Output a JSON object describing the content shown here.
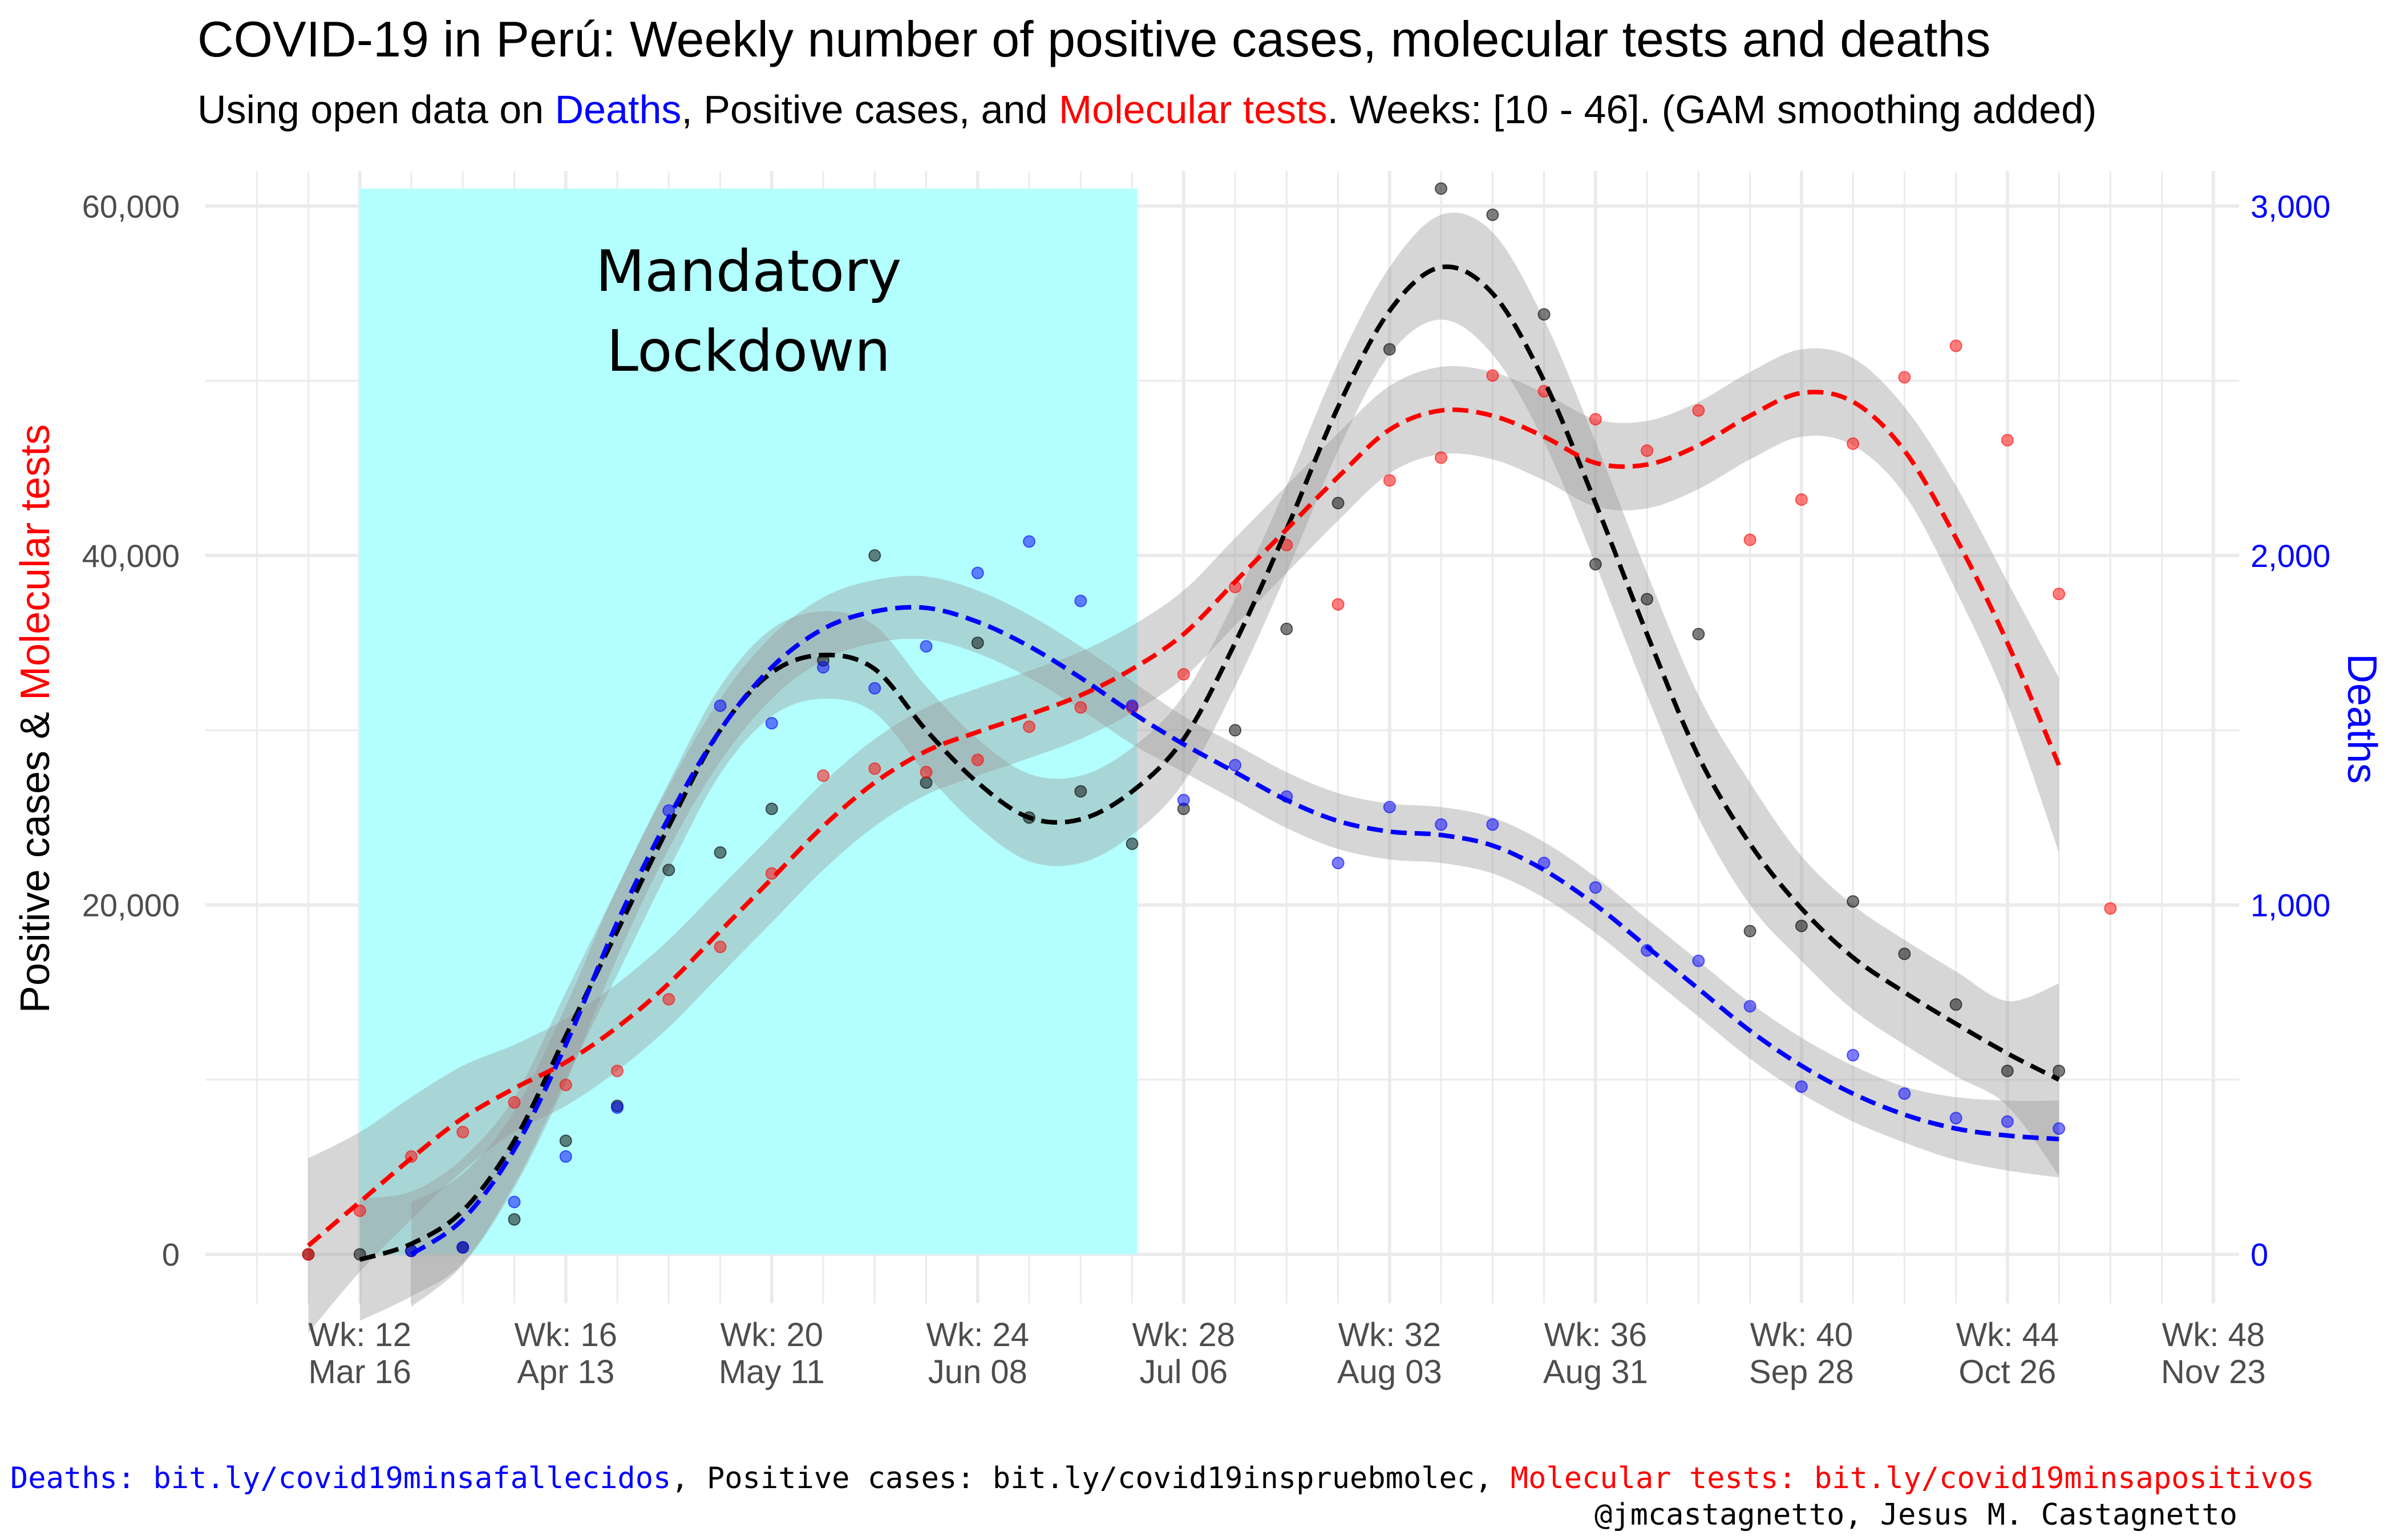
{
  "title": "COVID-19 in Perú: Weekly number of positive cases, molecular tests and deaths",
  "subtitle": {
    "prefix": "Using open data on ",
    "deaths": "Deaths",
    "middle": ", Positive cases, and ",
    "tests": "Molecular tests",
    "suffix": ". Weeks: [10 - 46]. (GAM smoothing added)"
  },
  "colors": {
    "cases": "#000000",
    "tests": "#ff0000",
    "deaths": "#0000ff",
    "lockdown": "#b3ffff",
    "ribbon": "#999999"
  },
  "chart_data": {
    "type": "scatter",
    "x_label": "",
    "y_left_label": {
      "part1": "Positive cases & ",
      "part2": "Molecular tests"
    },
    "y_right_label": "Deaths",
    "x_range_weeks": [
      9,
      48.5
    ],
    "y_left_range": [
      -2800,
      62000
    ],
    "y_right_range": [
      -140,
      3100
    ],
    "y_left_ticks": [
      {
        "value": 0,
        "label": "0"
      },
      {
        "value": 20000,
        "label": "20,000"
      },
      {
        "value": 40000,
        "label": "40,000"
      },
      {
        "value": 60000,
        "label": "60,000"
      }
    ],
    "y_right_ticks": [
      {
        "value": 0,
        "label": "0"
      },
      {
        "value": 1000,
        "label": "1,000"
      },
      {
        "value": 2000,
        "label": "2,000"
      },
      {
        "value": 3000,
        "label": "3,000"
      }
    ],
    "x_ticks": [
      {
        "week": 12,
        "label1": "Wk: 12",
        "label2": "Mar 16"
      },
      {
        "week": 16,
        "label1": "Wk: 16",
        "label2": "Apr 13"
      },
      {
        "week": 20,
        "label1": "Wk: 20",
        "label2": "May 11"
      },
      {
        "week": 24,
        "label1": "Wk: 24",
        "label2": "Jun 08"
      },
      {
        "week": 28,
        "label1": "Wk: 28",
        "label2": "Jul 06"
      },
      {
        "week": 32,
        "label1": "Wk: 32",
        "label2": "Aug 03"
      },
      {
        "week": 36,
        "label1": "Wk: 36",
        "label2": "Aug 31"
      },
      {
        "week": 40,
        "label1": "Wk: 40",
        "label2": "Sep 28"
      },
      {
        "week": 44,
        "label1": "Wk: 44",
        "label2": "Oct 26"
      },
      {
        "week": 48,
        "label1": "Wk: 48",
        "label2": "Nov 23"
      }
    ],
    "annotation": {
      "line1": "Mandatory",
      "line2": "Lockdown",
      "week_start": 12,
      "week_end": 27.1
    },
    "grid": true,
    "series": [
      {
        "name": "Positive cases",
        "axis": "left",
        "points": [
          [
            11,
            0
          ],
          [
            12,
            0
          ],
          [
            13,
            200
          ],
          [
            14,
            400
          ],
          [
            15,
            2000
          ],
          [
            16,
            6500
          ],
          [
            17,
            8500
          ],
          [
            18,
            22000
          ],
          [
            19,
            23000
          ],
          [
            20,
            25500
          ],
          [
            21,
            34000
          ],
          [
            22,
            40000
          ],
          [
            23,
            27000
          ],
          [
            24,
            35000
          ],
          [
            25,
            25000
          ],
          [
            26,
            26500
          ],
          [
            27,
            23500
          ],
          [
            28,
            25500
          ],
          [
            29,
            30000
          ],
          [
            30,
            35800
          ],
          [
            31,
            43000
          ],
          [
            32,
            51800
          ],
          [
            33,
            61000
          ],
          [
            34,
            59500
          ],
          [
            35,
            53800
          ],
          [
            36,
            39500
          ],
          [
            37,
            37500
          ],
          [
            38,
            35500
          ],
          [
            39,
            18500
          ],
          [
            40,
            18800
          ],
          [
            41,
            20200
          ],
          [
            42,
            17200
          ],
          [
            43,
            14300
          ],
          [
            44,
            10500
          ],
          [
            45,
            10500
          ]
        ],
        "smooth": [
          [
            12,
            -300
          ],
          [
            13,
            600
          ],
          [
            14,
            2500
          ],
          [
            15,
            6500
          ],
          [
            16,
            12500
          ],
          [
            17,
            18500
          ],
          [
            18,
            24500
          ],
          [
            19,
            30000
          ],
          [
            20,
            33300
          ],
          [
            21,
            34300
          ],
          [
            22,
            33500
          ],
          [
            23,
            30000
          ],
          [
            24,
            27000
          ],
          [
            25,
            25000
          ],
          [
            26,
            24900
          ],
          [
            27,
            26500
          ],
          [
            28,
            29500
          ],
          [
            29,
            35000
          ],
          [
            30,
            41500
          ],
          [
            31,
            48500
          ],
          [
            32,
            54000
          ],
          [
            33,
            56500
          ],
          [
            34,
            55000
          ],
          [
            35,
            50000
          ],
          [
            36,
            43000
          ],
          [
            37,
            35500
          ],
          [
            38,
            28500
          ],
          [
            39,
            23500
          ],
          [
            40,
            19800
          ],
          [
            41,
            17000
          ],
          [
            42,
            15000
          ],
          [
            43,
            13200
          ],
          [
            44,
            11500
          ],
          [
            45,
            10000
          ]
        ],
        "band": [
          3500,
          3000,
          3000,
          2500,
          2500,
          2500,
          2500,
          2500,
          2500,
          2500,
          2500,
          2500,
          2500,
          2500,
          2500,
          2500,
          2500,
          2500,
          2500,
          2500,
          2500,
          3000,
          3500,
          3500,
          3500,
          3500,
          3500,
          3500,
          3000,
          3000,
          3000,
          3000,
          3000,
          5500
        ]
      },
      {
        "name": "Molecular tests",
        "axis": "left",
        "points": [
          [
            11,
            0
          ],
          [
            12,
            2500
          ],
          [
            13,
            5600
          ],
          [
            14,
            7000
          ],
          [
            15,
            8700
          ],
          [
            16,
            9700
          ],
          [
            17,
            10500
          ],
          [
            18,
            14600
          ],
          [
            19,
            17600
          ],
          [
            20,
            21800
          ],
          [
            21,
            27400
          ],
          [
            22,
            27800
          ],
          [
            23,
            27600
          ],
          [
            24,
            28300
          ],
          [
            25,
            30200
          ],
          [
            26,
            31300
          ],
          [
            27,
            31300
          ],
          [
            28,
            33200
          ],
          [
            29,
            38200
          ],
          [
            30,
            40600
          ],
          [
            31,
            37200
          ],
          [
            32,
            44300
          ],
          [
            33,
            45600
          ],
          [
            34,
            50300
          ],
          [
            35,
            49400
          ],
          [
            36,
            47800
          ],
          [
            37,
            46000
          ],
          [
            38,
            48300
          ],
          [
            39,
            40900
          ],
          [
            40,
            43200
          ],
          [
            41,
            46400
          ],
          [
            42,
            50200
          ],
          [
            43,
            52000
          ],
          [
            44,
            46600
          ],
          [
            45,
            37800
          ],
          [
            46,
            19800
          ]
        ],
        "smooth": [
          [
            11,
            500
          ],
          [
            12,
            3000
          ],
          [
            13,
            5500
          ],
          [
            14,
            7800
          ],
          [
            15,
            9500
          ],
          [
            16,
            11000
          ],
          [
            17,
            13000
          ],
          [
            18,
            15500
          ],
          [
            19,
            18500
          ],
          [
            20,
            21500
          ],
          [
            21,
            24500
          ],
          [
            22,
            27000
          ],
          [
            23,
            28800
          ],
          [
            24,
            29900
          ],
          [
            25,
            30900
          ],
          [
            26,
            32000
          ],
          [
            27,
            33500
          ],
          [
            28,
            35500
          ],
          [
            29,
            38500
          ],
          [
            30,
            41500
          ],
          [
            31,
            44500
          ],
          [
            32,
            47200
          ],
          [
            33,
            48300
          ],
          [
            34,
            48000
          ],
          [
            35,
            46800
          ],
          [
            36,
            45300
          ],
          [
            37,
            45200
          ],
          [
            38,
            46300
          ],
          [
            39,
            48000
          ],
          [
            40,
            49300
          ],
          [
            41,
            48800
          ],
          [
            42,
            46000
          ],
          [
            43,
            41000
          ],
          [
            44,
            35000
          ],
          [
            45,
            28000
          ]
        ],
        "band": [
          5000,
          4000,
          3500,
          3000,
          2500,
          2500,
          2500,
          2500,
          2500,
          2500,
          2500,
          2500,
          2500,
          2500,
          2500,
          2500,
          2500,
          2500,
          2500,
          2500,
          2500,
          2500,
          2500,
          2500,
          2500,
          2500,
          2500,
          2500,
          2500,
          2500,
          2500,
          2500,
          3000,
          3500,
          5000
        ]
      },
      {
        "name": "Deaths",
        "axis": "right",
        "points": [
          [
            13,
            10
          ],
          [
            14,
            20
          ],
          [
            15,
            150
          ],
          [
            16,
            280
          ],
          [
            17,
            420
          ],
          [
            18,
            1270
          ],
          [
            19,
            1570
          ],
          [
            20,
            1520
          ],
          [
            21,
            1680
          ],
          [
            22,
            1620
          ],
          [
            23,
            1740
          ],
          [
            24,
            1950
          ],
          [
            25,
            2040
          ],
          [
            26,
            1870
          ],
          [
            27,
            1570
          ],
          [
            28,
            1300
          ],
          [
            29,
            1400
          ],
          [
            30,
            1310
          ],
          [
            31,
            1120
          ],
          [
            32,
            1280
          ],
          [
            33,
            1230
          ],
          [
            34,
            1230
          ],
          [
            35,
            1120
          ],
          [
            36,
            1050
          ],
          [
            37,
            870
          ],
          [
            38,
            840
          ],
          [
            39,
            710
          ],
          [
            40,
            480
          ],
          [
            41,
            570
          ],
          [
            42,
            460
          ],
          [
            43,
            390
          ],
          [
            44,
            380
          ],
          [
            45,
            360
          ]
        ],
        "smooth": [
          [
            13,
            0
          ],
          [
            14,
            100
          ],
          [
            15,
            300
          ],
          [
            16,
            600
          ],
          [
            17,
            950
          ],
          [
            18,
            1250
          ],
          [
            19,
            1500
          ],
          [
            20,
            1680
          ],
          [
            21,
            1790
          ],
          [
            22,
            1840
          ],
          [
            23,
            1850
          ],
          [
            24,
            1810
          ],
          [
            25,
            1740
          ],
          [
            26,
            1650
          ],
          [
            27,
            1550
          ],
          [
            28,
            1460
          ],
          [
            29,
            1380
          ],
          [
            30,
            1300
          ],
          [
            31,
            1240
          ],
          [
            32,
            1210
          ],
          [
            33,
            1200
          ],
          [
            34,
            1170
          ],
          [
            35,
            1100
          ],
          [
            36,
            1000
          ],
          [
            37,
            880
          ],
          [
            38,
            760
          ],
          [
            39,
            640
          ],
          [
            40,
            540
          ],
          [
            41,
            460
          ],
          [
            42,
            400
          ],
          [
            43,
            360
          ],
          [
            44,
            340
          ],
          [
            45,
            330
          ]
        ],
        "band": [
          150,
          130,
          110,
          110,
          100,
          90,
          90,
          90,
          90,
          90,
          90,
          90,
          90,
          90,
          90,
          80,
          80,
          80,
          80,
          80,
          80,
          80,
          80,
          80,
          80,
          80,
          80,
          80,
          80,
          80,
          90,
          100,
          110
        ]
      }
    ]
  },
  "caption": {
    "deaths": "Deaths: bit.ly/covid19minsafallecidos",
    "sep1": ", ",
    "cases": "Positive cases: bit.ly/covid19inspruebmolec",
    "sep2": ", ",
    "tests": "Molecular tests: bit.ly/covid19minsapositivos"
  },
  "credit": "@jmcastagnetto, Jesus M. Castagnetto"
}
